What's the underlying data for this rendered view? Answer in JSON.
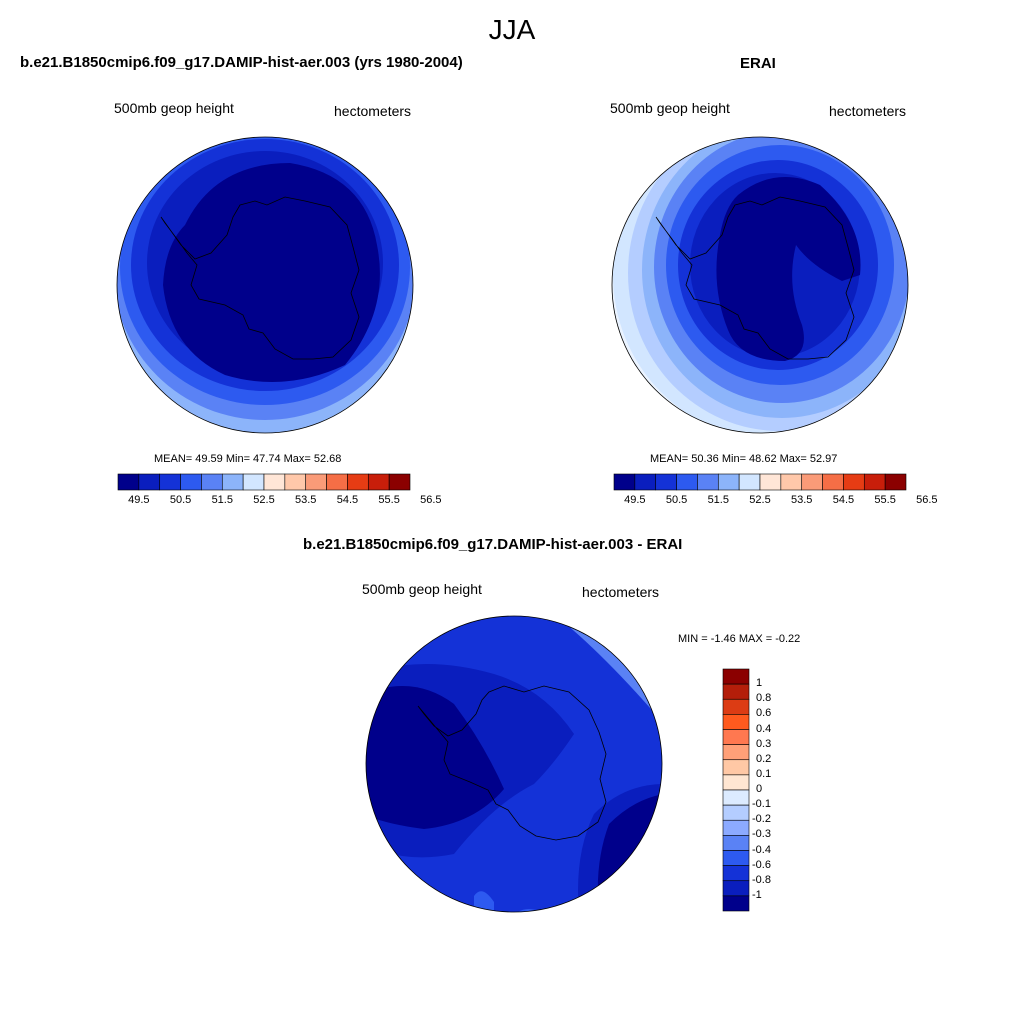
{
  "season": "JJA",
  "panel_left": {
    "title": "b.e21.B1850cmip6.f09_g17.DAMIP-hist-aer.003 (yrs 1980-2004)",
    "left_label": "500mb geop height",
    "right_label": "hectometers",
    "stats": "MEAN=  49.59  Min=  47.74  Max=  52.68",
    "colorbar_ticks": [
      "49.5",
      "50.5",
      "51.5",
      "52.5",
      "53.5",
      "54.5",
      "55.5",
      "56.5"
    ]
  },
  "panel_right": {
    "title": "ERAI",
    "left_label": "500mb geop height",
    "right_label": "hectometers",
    "stats": "MEAN=  50.36  Min=  48.62  Max=  52.97",
    "colorbar_ticks": [
      "49.5",
      "50.5",
      "51.5",
      "52.5",
      "53.5",
      "54.5",
      "55.5",
      "56.5"
    ]
  },
  "panel_diff": {
    "title": "b.e21.B1850cmip6.f09_g17.DAMIP-hist-aer.003 - ERAI",
    "left_label": "500mb geop height",
    "right_label": "hectometers",
    "stats": "MIN =  -1.46 MAX =  -0.22",
    "colorbar_ticks": [
      "1",
      "0.8",
      "0.6",
      "0.4",
      "0.3",
      "0.2",
      "0.1",
      "0",
      "-0.1",
      "-0.2",
      "-0.3",
      "-0.4",
      "-0.6",
      "-0.8",
      "-1"
    ]
  },
  "colors": {
    "abs_scale": [
      "#00008b",
      "#0a1ebe",
      "#1432d7",
      "#2d5af0",
      "#5a82f5",
      "#8cb4fa",
      "#d2e6ff",
      "#ffe6d7",
      "#ffc8aa",
      "#fa9b78",
      "#f56e46",
      "#e63c14",
      "#c81e0a",
      "#8b0000"
    ],
    "diff_scale": [
      "#8b0000",
      "#b41e0a",
      "#dc3c14",
      "#ff5a1e",
      "#ff7850",
      "#ffa078",
      "#ffc8a5",
      "#ffe6d2",
      "#dcebff",
      "#b4cdff",
      "#8caaff",
      "#5a82f5",
      "#2d5af0",
      "#1432d7",
      "#0a1ebe",
      "#00008b"
    ]
  }
}
